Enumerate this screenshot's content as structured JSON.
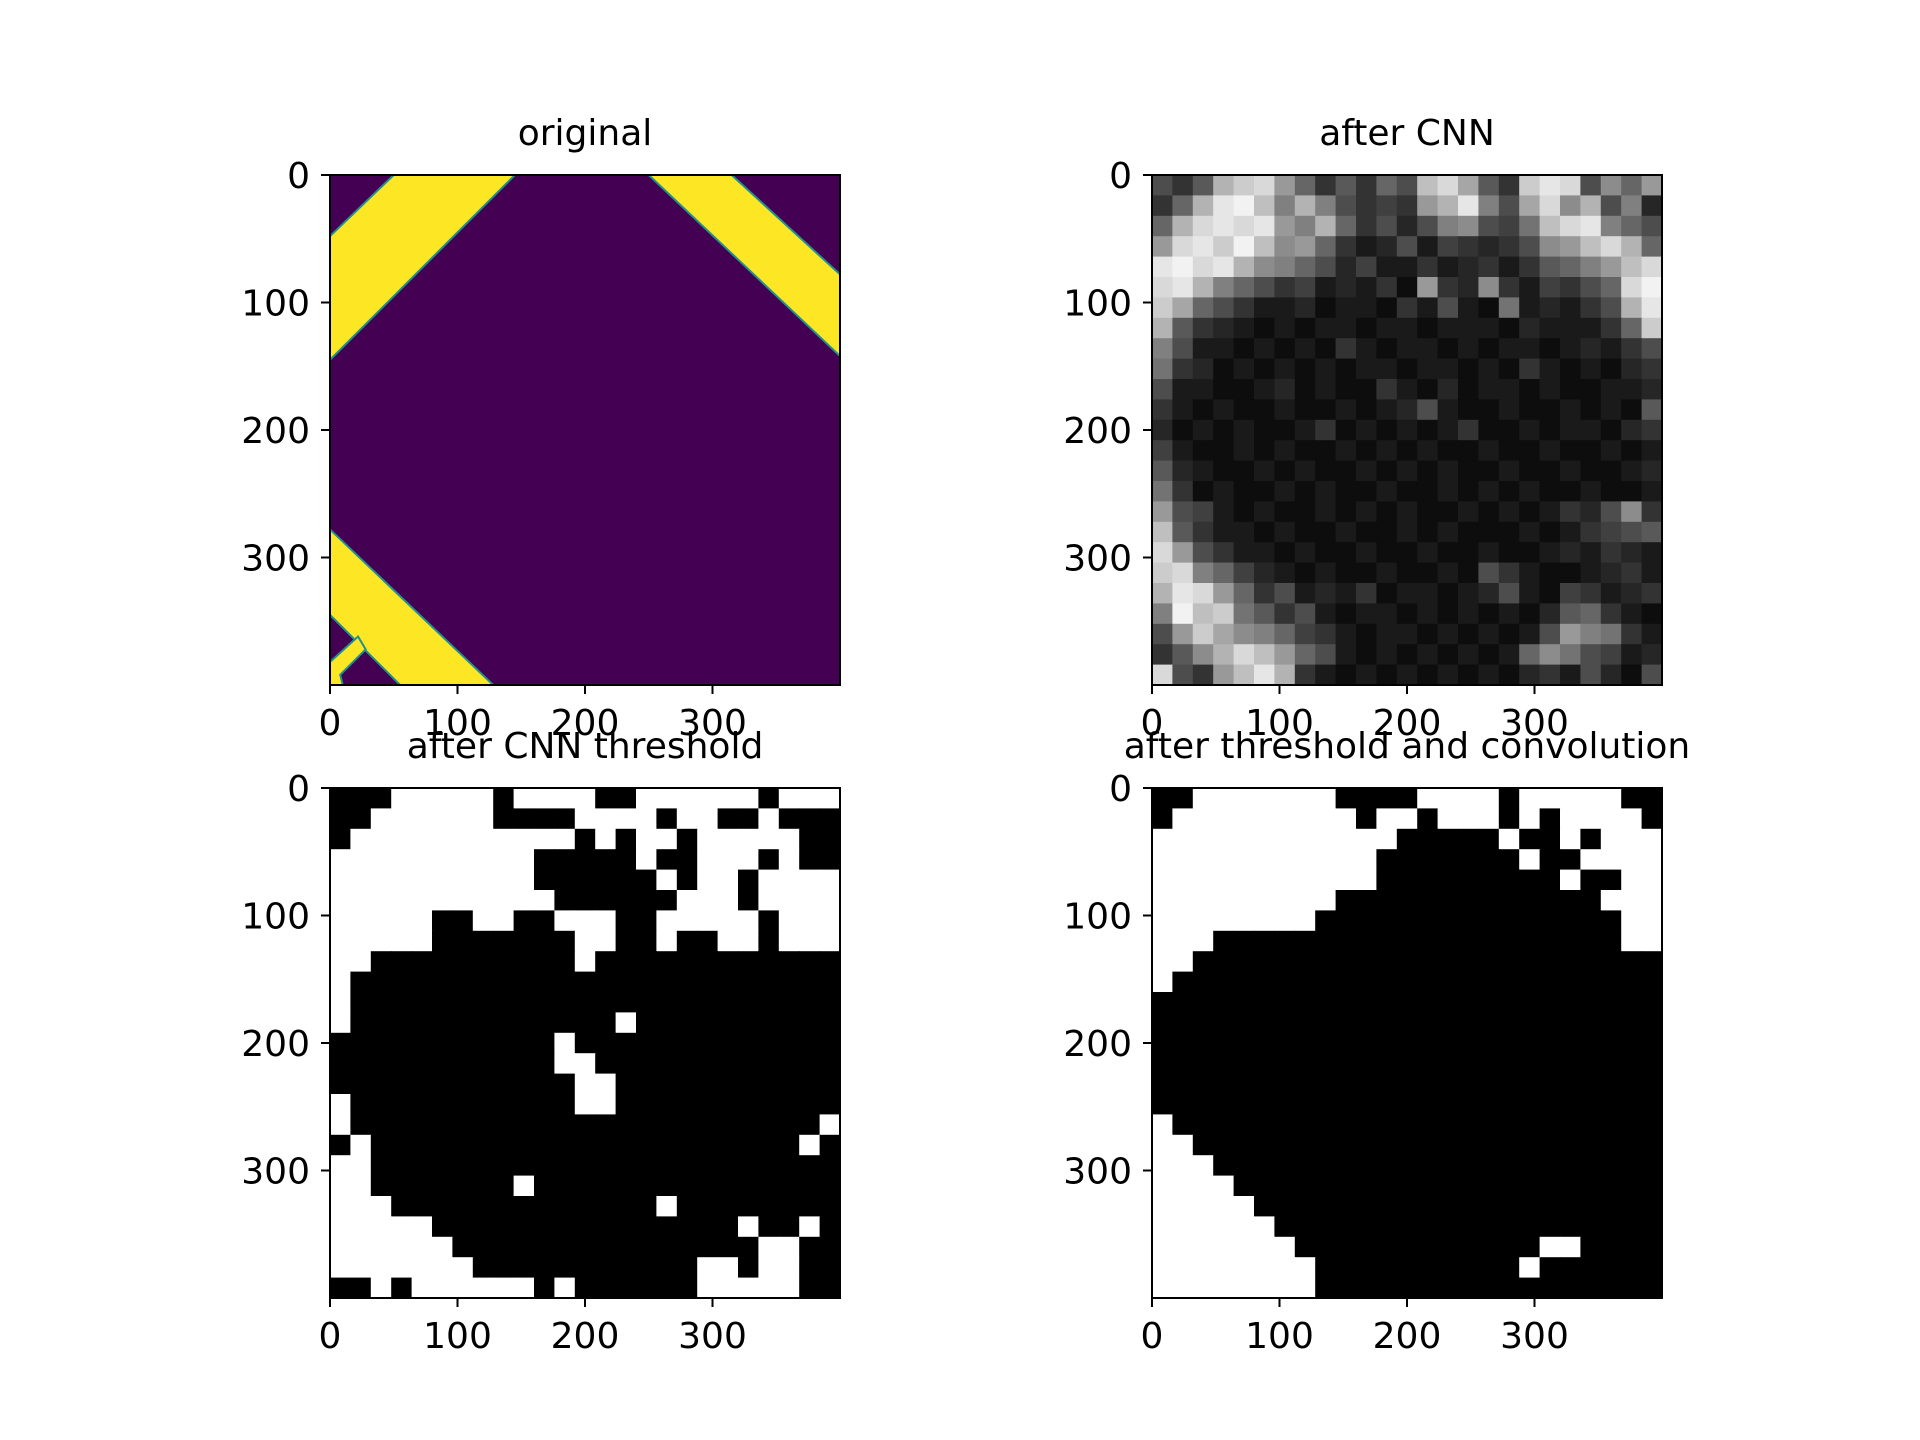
{
  "chart_data": [
    {
      "type": "heatmap",
      "title": "original",
      "colormap": "viridis",
      "colors": {
        "background": "#440154",
        "band": "#fde725",
        "edge": "#21918c"
      },
      "extent": [
        0,
        400
      ],
      "xlim": [
        0,
        400
      ],
      "ylim": [
        400,
        0
      ],
      "xticks": [
        0,
        100,
        200,
        300
      ],
      "yticks": [
        0,
        100,
        200,
        300
      ],
      "content": "purple field with yellow diagonal bands crossing the top-left, top-right and bottom-left corners",
      "polygons": [
        [
          [
            0,
            48
          ],
          [
            50,
            0
          ],
          [
            145,
            0
          ],
          [
            0,
            145
          ]
        ],
        [
          [
            250,
            0
          ],
          [
            315,
            0
          ],
          [
            400,
            78
          ],
          [
            400,
            142
          ]
        ],
        [
          [
            0,
            278
          ],
          [
            128,
            400
          ],
          [
            55,
            400
          ],
          [
            0,
            345
          ]
        ],
        [
          [
            0,
            382
          ],
          [
            22,
            362
          ],
          [
            28,
            372
          ],
          [
            8,
            392
          ],
          [
            10,
            400
          ],
          [
            0,
            400
          ]
        ]
      ]
    },
    {
      "type": "heatmap",
      "title": "after CNN",
      "colormap": "gray",
      "extent": [
        0,
        400
      ],
      "grid_size": [
        25,
        25
      ],
      "xlim": [
        0,
        400
      ],
      "ylim": [
        400,
        0
      ],
      "xticks": [
        0,
        100,
        200,
        300
      ],
      "yticks": [
        0,
        100,
        200,
        300
      ],
      "matrix": [
        [
          0.3,
          0.2,
          0.35,
          0.7,
          0.8,
          0.85,
          0.6,
          0.4,
          0.2,
          0.35,
          0.2,
          0.4,
          0.3,
          0.75,
          0.85,
          0.65,
          0.35,
          0.2,
          0.8,
          0.9,
          0.85,
          0.3,
          0.55,
          0.4,
          0.6
        ],
        [
          0.2,
          0.4,
          0.7,
          0.9,
          0.95,
          0.75,
          0.5,
          0.7,
          0.5,
          0.3,
          0.2,
          0.25,
          0.2,
          0.6,
          0.7,
          0.9,
          0.5,
          0.3,
          0.65,
          0.85,
          0.55,
          0.7,
          0.3,
          0.5,
          0.15
        ],
        [
          0.4,
          0.7,
          0.85,
          0.9,
          0.85,
          0.9,
          0.6,
          0.5,
          0.7,
          0.4,
          0.2,
          0.3,
          0.15,
          0.3,
          0.5,
          0.55,
          0.3,
          0.25,
          0.45,
          0.75,
          0.85,
          0.9,
          0.5,
          0.4,
          0.3
        ],
        [
          0.6,
          0.85,
          0.9,
          0.8,
          0.95,
          0.75,
          0.55,
          0.6,
          0.4,
          0.2,
          0.1,
          0.15,
          0.3,
          0.1,
          0.25,
          0.2,
          0.15,
          0.2,
          0.3,
          0.55,
          0.6,
          0.75,
          0.85,
          0.7,
          0.4
        ],
        [
          0.9,
          0.95,
          0.85,
          0.9,
          0.7,
          0.55,
          0.5,
          0.4,
          0.3,
          0.15,
          0.25,
          0.1,
          0.1,
          0.2,
          0.1,
          0.15,
          0.2,
          0.1,
          0.2,
          0.35,
          0.4,
          0.5,
          0.6,
          0.75,
          0.85
        ],
        [
          0.85,
          0.9,
          0.7,
          0.5,
          0.4,
          0.3,
          0.2,
          0.25,
          0.1,
          0.15,
          0.1,
          0.2,
          0.05,
          0.6,
          0.2,
          0.15,
          0.55,
          0.2,
          0.1,
          0.25,
          0.2,
          0.3,
          0.4,
          0.85,
          0.95
        ],
        [
          0.8,
          0.65,
          0.4,
          0.3,
          0.2,
          0.1,
          0.1,
          0.15,
          0.05,
          0.1,
          0.1,
          0.05,
          0.2,
          0.1,
          0.3,
          0.1,
          0.05,
          0.45,
          0.1,
          0.15,
          0.1,
          0.2,
          0.3,
          0.7,
          0.9
        ],
        [
          0.7,
          0.35,
          0.2,
          0.15,
          0.1,
          0.05,
          0.1,
          0.05,
          0.1,
          0.1,
          0.05,
          0.1,
          0.1,
          0.05,
          0.1,
          0.1,
          0.1,
          0.05,
          0.15,
          0.1,
          0.1,
          0.1,
          0.2,
          0.4,
          0.8
        ],
        [
          0.5,
          0.3,
          0.1,
          0.1,
          0.05,
          0.1,
          0.05,
          0.1,
          0.05,
          0.2,
          0.1,
          0.05,
          0.1,
          0.1,
          0.05,
          0.1,
          0.05,
          0.1,
          0.1,
          0.05,
          0.1,
          0.15,
          0.1,
          0.2,
          0.3
        ],
        [
          0.45,
          0.2,
          0.15,
          0.05,
          0.1,
          0.05,
          0.1,
          0.05,
          0.1,
          0.05,
          0.1,
          0.1,
          0.05,
          0.1,
          0.1,
          0.05,
          0.1,
          0.05,
          0.2,
          0.1,
          0.05,
          0.1,
          0.05,
          0.15,
          0.2
        ],
        [
          0.3,
          0.1,
          0.1,
          0.05,
          0.05,
          0.1,
          0.15,
          0.05,
          0.1,
          0.05,
          0.05,
          0.2,
          0.1,
          0.05,
          0.15,
          0.05,
          0.1,
          0.1,
          0.05,
          0.1,
          0.05,
          0.05,
          0.1,
          0.1,
          0.15
        ],
        [
          0.2,
          0.1,
          0.05,
          0.1,
          0.05,
          0.05,
          0.1,
          0.05,
          0.05,
          0.1,
          0.05,
          0.1,
          0.15,
          0.3,
          0.1,
          0.05,
          0.05,
          0.1,
          0.05,
          0.05,
          0.1,
          0.05,
          0.1,
          0.05,
          0.35
        ],
        [
          0.15,
          0.05,
          0.1,
          0.05,
          0.1,
          0.05,
          0.05,
          0.1,
          0.2,
          0.05,
          0.1,
          0.05,
          0.1,
          0.05,
          0.1,
          0.2,
          0.05,
          0.05,
          0.1,
          0.05,
          0.1,
          0.1,
          0.05,
          0.15,
          0.2
        ],
        [
          0.25,
          0.1,
          0.05,
          0.05,
          0.1,
          0.05,
          0.1,
          0.05,
          0.05,
          0.1,
          0.05,
          0.1,
          0.05,
          0.1,
          0.05,
          0.05,
          0.1,
          0.05,
          0.05,
          0.1,
          0.05,
          0.05,
          0.1,
          0.05,
          0.1
        ],
        [
          0.35,
          0.15,
          0.1,
          0.05,
          0.05,
          0.1,
          0.05,
          0.1,
          0.05,
          0.05,
          0.1,
          0.05,
          0.1,
          0.05,
          0.1,
          0.05,
          0.05,
          0.1,
          0.05,
          0.05,
          0.1,
          0.05,
          0.05,
          0.1,
          0.15
        ],
        [
          0.45,
          0.2,
          0.05,
          0.1,
          0.05,
          0.05,
          0.1,
          0.05,
          0.1,
          0.05,
          0.05,
          0.1,
          0.05,
          0.05,
          0.1,
          0.05,
          0.1,
          0.05,
          0.1,
          0.05,
          0.05,
          0.1,
          0.05,
          0.05,
          0.1
        ],
        [
          0.6,
          0.3,
          0.25,
          0.1,
          0.05,
          0.1,
          0.05,
          0.05,
          0.1,
          0.05,
          0.1,
          0.05,
          0.1,
          0.05,
          0.05,
          0.1,
          0.05,
          0.1,
          0.05,
          0.1,
          0.2,
          0.15,
          0.3,
          0.55,
          0.2
        ],
        [
          0.75,
          0.35,
          0.2,
          0.1,
          0.1,
          0.05,
          0.1,
          0.05,
          0.05,
          0.1,
          0.05,
          0.05,
          0.1,
          0.05,
          0.1,
          0.05,
          0.05,
          0.05,
          0.1,
          0.05,
          0.1,
          0.2,
          0.25,
          0.3,
          0.35
        ],
        [
          0.85,
          0.6,
          0.3,
          0.2,
          0.1,
          0.1,
          0.05,
          0.1,
          0.05,
          0.05,
          0.1,
          0.05,
          0.05,
          0.1,
          0.05,
          0.05,
          0.1,
          0.05,
          0.05,
          0.1,
          0.15,
          0.1,
          0.2,
          0.15,
          0.1
        ],
        [
          0.8,
          0.85,
          0.5,
          0.4,
          0.25,
          0.15,
          0.1,
          0.05,
          0.1,
          0.05,
          0.05,
          0.1,
          0.05,
          0.05,
          0.1,
          0.05,
          0.3,
          0.2,
          0.1,
          0.05,
          0.05,
          0.1,
          0.15,
          0.2,
          0.1
        ],
        [
          0.7,
          0.9,
          0.85,
          0.6,
          0.4,
          0.2,
          0.3,
          0.1,
          0.15,
          0.1,
          0.2,
          0.05,
          0.1,
          0.1,
          0.05,
          0.1,
          0.15,
          0.3,
          0.1,
          0.05,
          0.25,
          0.2,
          0.1,
          0.15,
          0.2
        ],
        [
          0.5,
          0.95,
          0.75,
          0.8,
          0.45,
          0.35,
          0.2,
          0.3,
          0.1,
          0.05,
          0.1,
          0.1,
          0.05,
          0.1,
          0.05,
          0.1,
          0.05,
          0.1,
          0.05,
          0.15,
          0.35,
          0.4,
          0.2,
          0.1,
          0.05
        ],
        [
          0.3,
          0.6,
          0.8,
          0.65,
          0.55,
          0.5,
          0.4,
          0.25,
          0.2,
          0.1,
          0.05,
          0.1,
          0.1,
          0.05,
          0.1,
          0.05,
          0.1,
          0.05,
          0.1,
          0.3,
          0.6,
          0.5,
          0.45,
          0.2,
          0.1
        ],
        [
          0.2,
          0.35,
          0.55,
          0.7,
          0.85,
          0.75,
          0.6,
          0.4,
          0.3,
          0.1,
          0.05,
          0.1,
          0.05,
          0.1,
          0.05,
          0.1,
          0.05,
          0.1,
          0.4,
          0.55,
          0.45,
          0.3,
          0.25,
          0.1,
          0.15
        ],
        [
          0.85,
          0.3,
          0.2,
          0.6,
          0.75,
          0.9,
          0.7,
          0.2,
          0.1,
          0.05,
          0.1,
          0.05,
          0.1,
          0.05,
          0.1,
          0.05,
          0.1,
          0.05,
          0.15,
          0.2,
          0.1,
          0.3,
          0.15,
          0.05,
          0.3
        ]
      ]
    },
    {
      "type": "heatmap",
      "title": "after CNN threshold",
      "colormap": "gray",
      "extent": [
        0,
        400
      ],
      "grid_size": [
        25,
        25
      ],
      "xlim": [
        0,
        400
      ],
      "ylim": [
        400,
        0
      ],
      "xticks": [
        0,
        100,
        200,
        300
      ],
      "yticks": [
        0,
        100,
        200,
        300
      ],
      "rows": [
        "0001111101111001111110111",
        "0011111100001111011001000",
        "0111111111110101101111100",
        "1111111111000001001110100",
        "1111111111000000101101111",
        "1111111111100000011101111",
        "1111100110011100111110111",
        "1111100000001100100110111",
        "1100000000001000000000000",
        "1000000000000000000000000",
        "1000000000000000000000000",
        "1000000000000000000000000",
        "0000000000000000000000000",
        "0000000000001000000000000",
        "0000000000001000000000000",
        "1000000000000100000000000",
        "1000000000000000000000001",
        "0100000000000000000000000",
        "1100000000000000000000000",
        "1100000000000000000000000",
        "1110000000000000000000000",
        "1111100000000000000000000",
        "1111110000000000000000000",
        "1111111000000000000000000",
        "0010111111010000101010111"
      ],
      "overrides_white": [
        [
          15,
          12
        ],
        [
          14,
          13
        ],
        [
          13,
          11
        ],
        [
          12,
          11
        ],
        [
          11,
          14
        ],
        [
          16,
          24
        ],
        [
          19,
          9
        ],
        [
          17,
          23
        ],
        [
          20,
          16
        ],
        [
          21,
          23
        ],
        [
          21,
          20
        ],
        [
          22,
          21
        ],
        [
          22,
          22
        ],
        [
          23,
          18
        ],
        [
          23,
          19
        ],
        [
          23,
          21
        ],
        [
          23,
          22
        ],
        [
          24,
          18
        ],
        [
          24,
          19
        ],
        [
          24,
          21
        ],
        [
          24,
          22
        ]
      ],
      "overrides_black": [
        [
          23,
          13
        ],
        [
          24,
          24
        ],
        [
          24,
          23
        ],
        [
          24,
          14
        ],
        [
          24,
          15
        ],
        [
          24,
          16
        ],
        [
          24,
          17
        ]
      ]
    },
    {
      "type": "heatmap",
      "title": "after threshold and convolution",
      "colormap": "gray",
      "extent": [
        0,
        400
      ],
      "grid_size": [
        25,
        25
      ],
      "xlim": [
        0,
        400
      ],
      "ylim": [
        400,
        0
      ],
      "xticks": [
        0,
        100,
        200,
        300
      ],
      "yticks": [
        0,
        100,
        200,
        300
      ],
      "rows": [
        "0011111110000111101111100",
        "0111111111011011101011110",
        "1111111111110000010010111",
        "1111111111100000001001111",
        "1111111111100000000010011",
        "1111111110000000000000111",
        "1111111100000000000000011",
        "1110000000000000000000011",
        "1100000000000000000000000",
        "1000000000000000000000000",
        "0000000000000000000000000",
        "0000000000000000000000000",
        "0000000000000000000000000",
        "0000000000000000000000000",
        "0000000000000000000000000",
        "0000000000000000000000000",
        "1000000000000000000000000",
        "1100000000000000000000000",
        "1110000000000000000000000",
        "1111000000000000000000000",
        "1111100000000000000000000",
        "1111110000000000000000000",
        "1111111000000000000110000",
        "1111111100000000001000000",
        "1111111100000000000000000"
      ]
    }
  ]
}
